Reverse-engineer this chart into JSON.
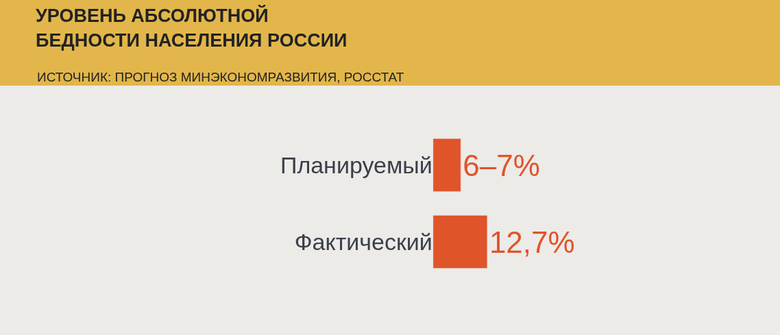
{
  "chart_data": {
    "type": "bar",
    "orientation": "horizontal",
    "title": "УРОВЕНЬ АБСОЛЮТНОЙ\nБЕДНОСТИ НАСЕЛЕНИЯ РОССИИ",
    "subtitle": "ИСТОЧНИК: ПРОГНОЗ МИНЭКОНОМРАЗВИТИЯ, РОССТАТ",
    "categories": [
      "Планируемый",
      "Фактический"
    ],
    "values": [
      6.5,
      12.7
    ],
    "value_labels": [
      "6–7%",
      "12,7%"
    ],
    "color": "#e0542a",
    "legend": false,
    "grid": false
  }
}
